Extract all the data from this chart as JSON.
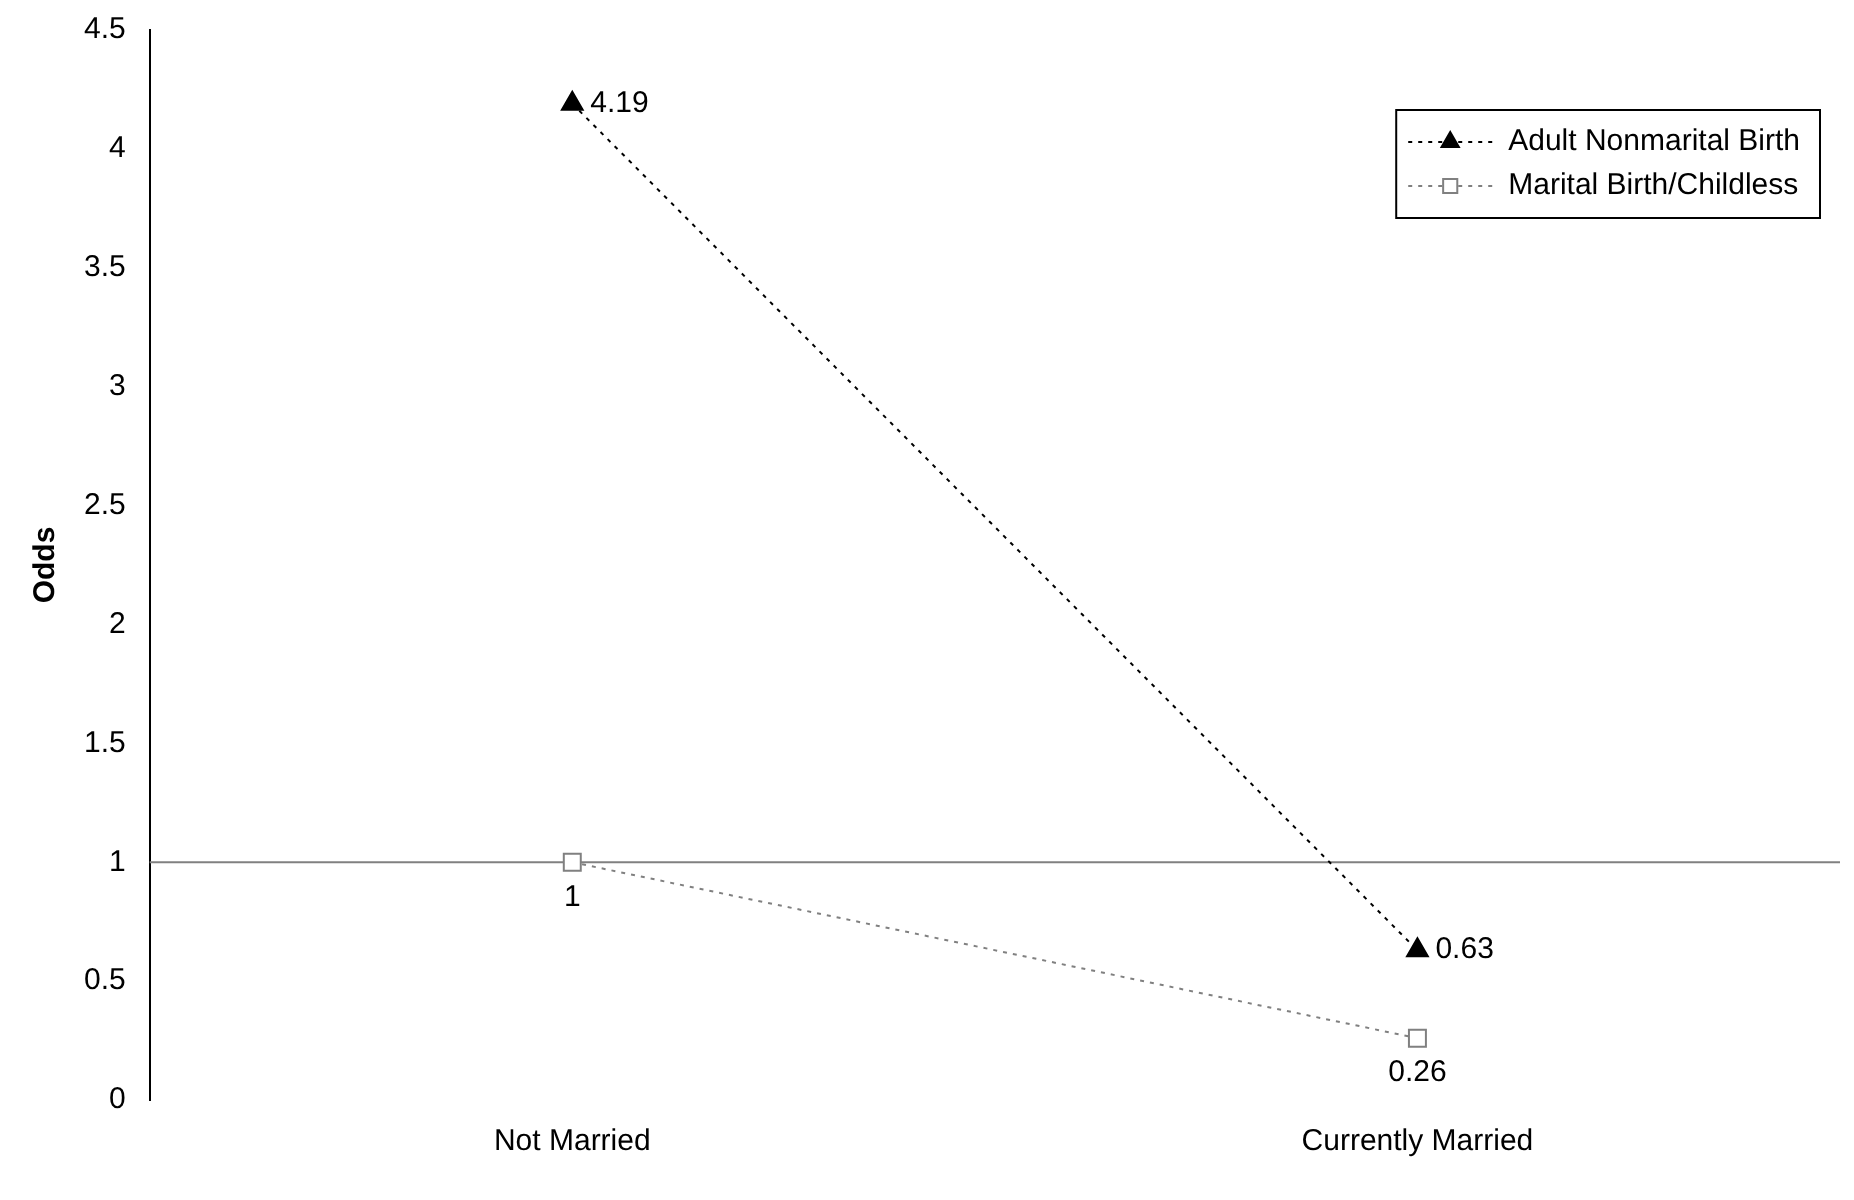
{
  "chart_data": {
    "type": "line",
    "ylabel": "Odds",
    "categories": [
      "Not Married",
      "Currently Married"
    ],
    "series": [
      {
        "name": "Adult Nonmarital Birth",
        "color": "#000000",
        "values": [
          4.19,
          0.63
        ],
        "marker": "triangle"
      },
      {
        "name": "Marital Birth/Childless",
        "color": "#808080",
        "values": [
          1,
          0.26
        ],
        "marker": "square"
      }
    ],
    "ylim": [
      0,
      4.5
    ],
    "yticks": [
      0,
      0.5,
      1,
      1.5,
      2,
      2.5,
      3,
      3.5,
      4,
      4.5
    ],
    "ref_lines": [
      {
        "axis": "y",
        "value": 1,
        "color": "#808080",
        "line_style": "solid"
      }
    ],
    "data_labels": true,
    "grid": false,
    "legend": "top right",
    "line_style": "dotted"
  }
}
